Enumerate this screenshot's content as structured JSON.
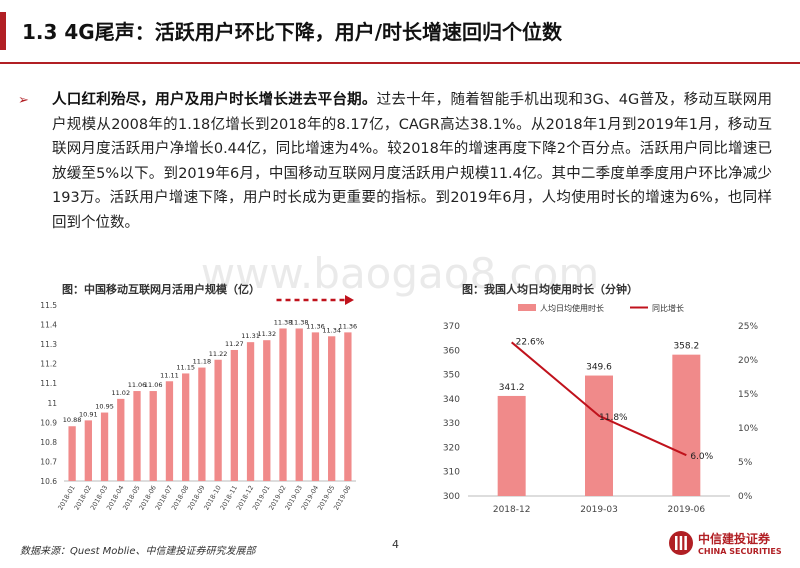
{
  "header": {
    "title": "1.3 4G尾声：活跃用户环比下降，用户/时长增速回归个位数"
  },
  "body": {
    "bullet": "➢",
    "lead": "人口红利殆尽，用户及用户时长增长进去平台期。",
    "text": "过去十年，随着智能手机出现和3G、4G普及，移动互联网用户规模从2008年的1.18亿增长到2018年的8.17亿，CAGR高达38.1%。从2018年1月到2019年1月，移动互联网月度活跃用户净增长0.44亿，同比增速为4%。较2018年的增速再度下降2个百分点。活跃用户同比增速已放缓至5%以下。到2019年6月，中国移动互联网月度活跃用户规模11.4亿。其中二季度单季度用户环比净减少193万。活跃用户增速下降，用户时长成为更重要的指标。到2019年6月，人均使用时长的增速为6%，也同样回到个位数。"
  },
  "watermark": "www.baogao8.com",
  "footer": {
    "source": "数据来源：Quest Moblie、中信建投证券研究发展部",
    "page": "4"
  },
  "logo": {
    "cn": "中信建投证券",
    "en": "CHINA SECURITIES"
  },
  "chart_data": [
    {
      "type": "bar",
      "caption": "图：中国移动互联网月活用户规模（亿）",
      "categories": [
        "2018-01",
        "2018-02",
        "2018-03",
        "2018-04",
        "2018-05",
        "2018-06",
        "2018-07",
        "2018-08",
        "2018-09",
        "2018-10",
        "2018-11",
        "2018-12",
        "2019-01",
        "2019-02",
        "2019-03",
        "2019-04",
        "2019-05",
        "2019-06"
      ],
      "values": [
        10.88,
        10.91,
        10.95,
        11.02,
        11.06,
        11.06,
        11.11,
        11.15,
        11.18,
        11.22,
        11.27,
        11.31,
        11.32,
        11.38,
        11.38,
        11.36,
        11.34,
        11.36
      ],
      "ylim": [
        10.6,
        11.5
      ],
      "yticks": [
        "10.6",
        "10.7",
        "10.8",
        "10.9",
        "11",
        "11.1",
        "11.2",
        "11.3",
        "11.4",
        "11.5"
      ],
      "annotation": "dashed red arrow over 2019-02 to 2019-06",
      "grid": false,
      "colors": {
        "bar": "#f08a8a",
        "arrow": "#c0121c"
      }
    },
    {
      "type": "bar+line",
      "caption": "图：我国人均日均使用时长（分钟）",
      "categories": [
        "2018-12",
        "2019-03",
        "2019-06"
      ],
      "series": [
        {
          "name": "人均日均使用时长",
          "type": "bar",
          "values": [
            341.2,
            349.6,
            358.2
          ],
          "labels": [
            "341.2",
            "349.6",
            "358.2"
          ],
          "axis": "left"
        },
        {
          "name": "同比增长",
          "type": "line",
          "values": [
            22.6,
            11.8,
            6.0
          ],
          "labels": [
            "22.6%",
            "11.8%",
            "6.0%"
          ],
          "axis": "right"
        }
      ],
      "ylim_left": [
        300,
        370
      ],
      "yticks_left": [
        "300",
        "310",
        "320",
        "330",
        "340",
        "350",
        "360",
        "370"
      ],
      "ylim_right": [
        0,
        25
      ],
      "yticks_right": [
        "0%",
        "5%",
        "10%",
        "15%",
        "20%",
        "25%"
      ],
      "legend_position": "top",
      "grid": false,
      "colors": {
        "bar": "#f08a8a",
        "line": "#c0121c"
      }
    }
  ]
}
